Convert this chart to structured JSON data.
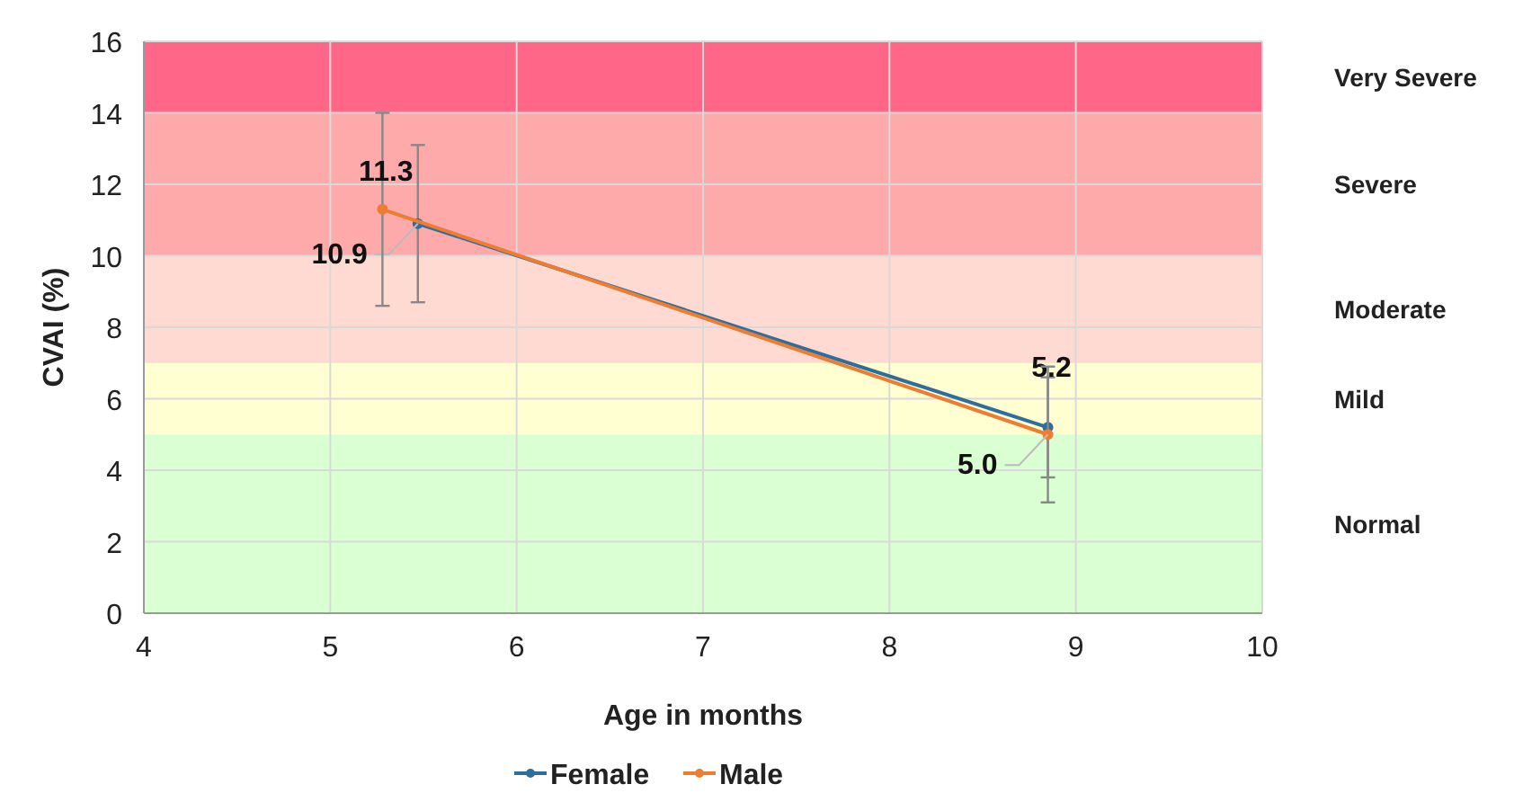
{
  "chart_data": {
    "type": "line",
    "xlabel": "Age in months",
    "ylabel": "CVAI (%)",
    "xlim": [
      4,
      10
    ],
    "xticks": [
      4,
      5,
      6,
      7,
      8,
      9,
      10
    ],
    "ylim": [
      0,
      16
    ],
    "yticks": [
      0,
      2,
      4,
      6,
      8,
      10,
      12,
      14,
      16
    ],
    "grid": true,
    "legend": "bottom",
    "marker": "circle",
    "line_style": "solid",
    "bands": [
      {
        "axis": "y",
        "from": 0,
        "to": 5,
        "label": "Normal",
        "color": "#d9ffd2"
      },
      {
        "axis": "y",
        "from": 5,
        "to": 7,
        "label": "Mild",
        "color": "#ffffd2"
      },
      {
        "axis": "y",
        "from": 7,
        "to": 10,
        "label": "Moderate",
        "color": "#ffdad2"
      },
      {
        "axis": "y",
        "from": 10,
        "to": 14,
        "label": "Severe",
        "color": "#ffaaaa"
      },
      {
        "axis": "y",
        "from": 14,
        "to": 16,
        "label": "Very Severe",
        "color": "#ff6688"
      }
    ],
    "series": [
      {
        "name": "Female",
        "color": "#2e6e9e",
        "x": [
          5.47,
          8.85
        ],
        "values": [
          10.9,
          5.2
        ],
        "errors": [
          2.2,
          1.4
        ],
        "value_labels": [
          "10.9",
          "5.2"
        ]
      },
      {
        "name": "Male",
        "color": "#ed7d31",
        "x": [
          5.28,
          8.85
        ],
        "values": [
          11.3,
          5.0
        ],
        "errors": [
          2.7,
          1.9
        ],
        "value_labels": [
          "11.3",
          "5.0"
        ]
      }
    ]
  }
}
